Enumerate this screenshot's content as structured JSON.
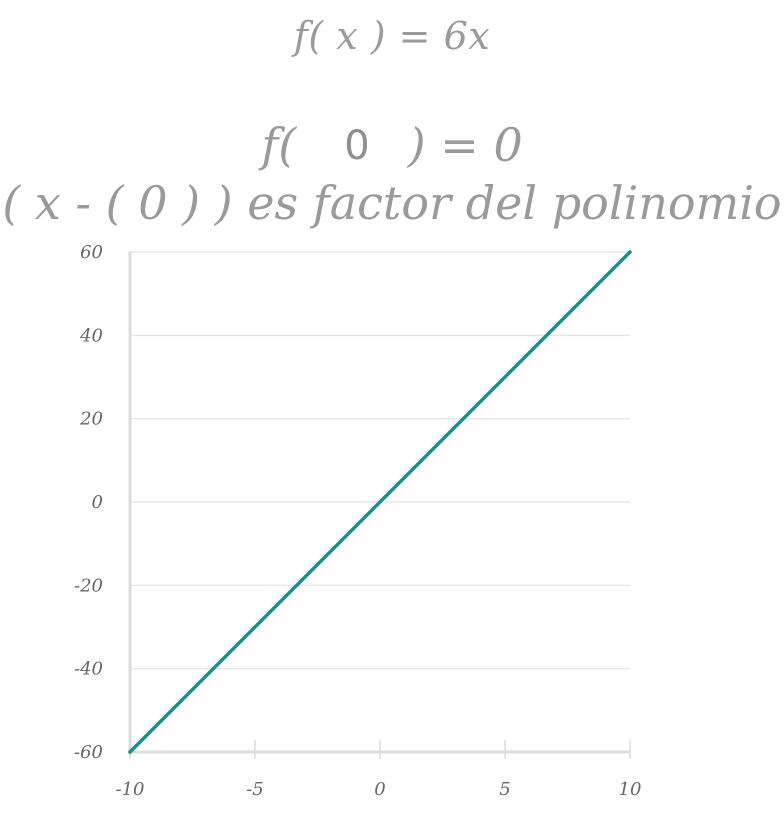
{
  "header": {
    "function_label": "f( x ) = 6x",
    "evaluation_prefix": "f(",
    "evaluation_input": "0",
    "evaluation_suffix": ") = 0",
    "factor_statement": "( x - ( 0 ) ) es factor del polinomio"
  },
  "colors": {
    "line": "#1a8f8f",
    "grid": "#e6e6e6",
    "axis": "#dcdcdc",
    "text": "#9a9a9a"
  },
  "chart_data": {
    "type": "line",
    "title": "",
    "xlabel": "",
    "ylabel": "",
    "xlim": [
      -10,
      10
    ],
    "ylim": [
      -60,
      60
    ],
    "x_ticks": [
      -10,
      -5,
      0,
      5,
      10
    ],
    "y_ticks": [
      60,
      40,
      20,
      0,
      -20,
      -40,
      -60
    ],
    "grid": true,
    "series": [
      {
        "x": [
          -10,
          10
        ],
        "y": [
          -60,
          60
        ]
      }
    ]
  }
}
